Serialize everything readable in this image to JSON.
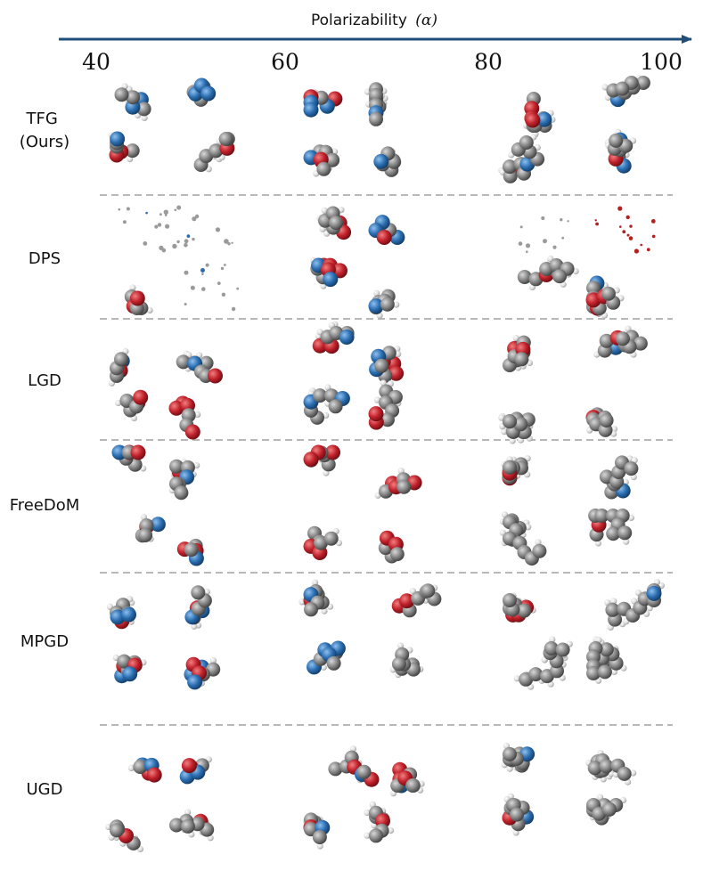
{
  "axis": {
    "title": "Polarizability",
    "symbol": "(α)",
    "ticks": [
      "40",
      "60",
      "80",
      "100"
    ],
    "arrow_color": "#1f4e79"
  },
  "methods": [
    {
      "lines": [
        "TFG",
        "(Ours)"
      ]
    },
    {
      "lines": [
        "DPS"
      ]
    },
    {
      "lines": [
        "LGD"
      ]
    },
    {
      "lines": [
        "FreeDoM"
      ]
    },
    {
      "lines": [
        "MPGD"
      ]
    },
    {
      "lines": [
        "UGD"
      ]
    }
  ],
  "atom_colors": {
    "carbon": "#8a8a8a",
    "hydrogen": "#e6e6e6",
    "oxygen": "#c8232c",
    "nitrogen": "#2a6db0"
  }
}
